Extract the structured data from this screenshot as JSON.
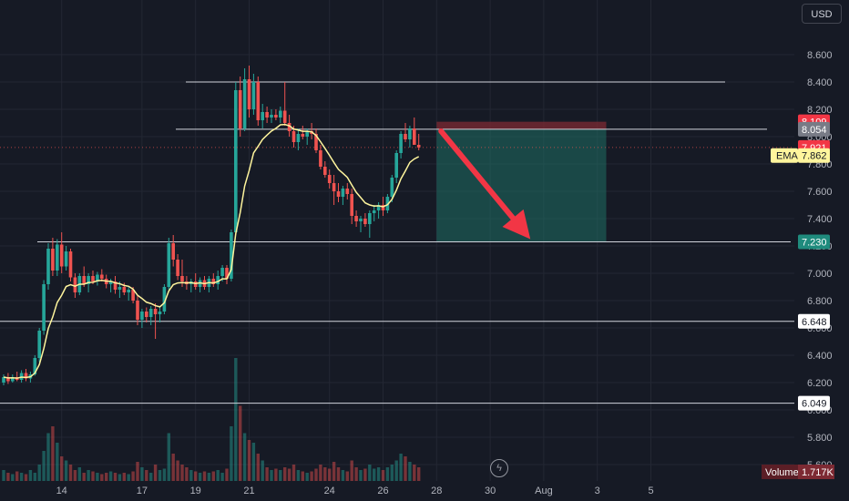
{
  "currency_label": "USD",
  "icons": {
    "lightning": "lightning-icon",
    "lightning_glyph": "ϟ"
  },
  "colors": {
    "background": "#161a25",
    "grid": "#232733",
    "up": "#26a69a",
    "down": "#ef5350",
    "ema": "#fff59d",
    "hline": "#d1d4dc",
    "arrow": "#f23645",
    "target_zone": "#1f6f65",
    "stop_zone": "#7d2a33"
  },
  "chart_data": {
    "type": "candlestick",
    "ylim": [
      5.6,
      8.8
    ],
    "y_ticks": [
      "5.600",
      "5.800",
      "6.000",
      "6.200",
      "6.400",
      "6.600",
      "6.800",
      "7.000",
      "7.200",
      "7.400",
      "7.600",
      "7.800",
      "8.000",
      "8.200",
      "8.400",
      "8.600"
    ],
    "x_ticks": [
      {
        "label": "14",
        "index": 13
      },
      {
        "label": "17",
        "index": 31
      },
      {
        "label": "19",
        "index": 43
      },
      {
        "label": "21",
        "index": 55
      },
      {
        "label": "24",
        "index": 73
      },
      {
        "label": "26",
        "index": 85
      },
      {
        "label": "28",
        "index": 97
      },
      {
        "label": "30",
        "index": 109
      },
      {
        "label": "Aug",
        "index": 121
      },
      {
        "label": "3",
        "index": 133
      },
      {
        "label": "5",
        "index": 145
      }
    ],
    "horizontal_levels": [
      8.4,
      8.054,
      7.23,
      6.648,
      6.049
    ],
    "price_labels": [
      {
        "name": "stop",
        "value": 8.109,
        "text": "8.109",
        "color": "#f23645"
      },
      {
        "name": "entry",
        "value": 8.054,
        "text": "8.054",
        "color": "#787b86"
      },
      {
        "name": "last",
        "value": 7.921,
        "text": "7.921",
        "color": "#f23645"
      },
      {
        "name": "ema",
        "value": 7.862,
        "text": "7.862",
        "color": "#fff59d",
        "prefix": "EMA"
      },
      {
        "name": "target",
        "value": 7.23,
        "text": "7.230",
        "color": "#1f8b7d"
      },
      {
        "name": "level-6648",
        "value": 6.648,
        "text": "6.648",
        "color": "#ffffff"
      },
      {
        "name": "level-6049",
        "value": 6.049,
        "text": "6.049",
        "color": "#ffffff"
      }
    ],
    "volume": {
      "label": "Volume",
      "value_text": "1.717K"
    },
    "position": {
      "type": "short",
      "entry": 8.054,
      "stop": 8.109,
      "target": 7.23,
      "start_index": 97,
      "end_index": 135
    },
    "arrow": {
      "from_index": 98,
      "from_price": 8.04,
      "to_index": 118,
      "to_price": 7.25
    },
    "candles": [
      [
        6.2,
        6.26,
        6.18,
        6.24
      ],
      [
        6.24,
        6.27,
        6.19,
        6.21
      ],
      [
        6.21,
        6.26,
        6.2,
        6.24
      ],
      [
        6.24,
        6.28,
        6.21,
        6.22
      ],
      [
        6.22,
        6.29,
        6.2,
        6.27
      ],
      [
        6.27,
        6.3,
        6.21,
        6.23
      ],
      [
        6.23,
        6.28,
        6.2,
        6.26
      ],
      [
        6.26,
        6.4,
        6.25,
        6.38
      ],
      [
        6.38,
        6.6,
        6.35,
        6.58
      ],
      [
        6.58,
        6.95,
        6.55,
        6.92
      ],
      [
        6.92,
        7.22,
        6.88,
        7.18
      ],
      [
        7.18,
        7.26,
        6.98,
        7.02
      ],
      [
        7.02,
        7.25,
        6.98,
        7.21
      ],
      [
        7.21,
        7.3,
        7.0,
        7.05
      ],
      [
        7.05,
        7.2,
        7.02,
        7.16
      ],
      [
        7.16,
        7.18,
        6.94,
        6.97
      ],
      [
        6.97,
        7.0,
        6.82,
        6.86
      ],
      [
        6.86,
        7.0,
        6.84,
        6.98
      ],
      [
        6.98,
        7.05,
        6.9,
        6.92
      ],
      [
        6.92,
        7.0,
        6.86,
        6.98
      ],
      [
        6.98,
        7.02,
        6.92,
        6.94
      ],
      [
        6.94,
        7.01,
        6.91,
        6.99
      ],
      [
        6.99,
        7.03,
        6.94,
        6.96
      ],
      [
        6.96,
        6.99,
        6.89,
        6.92
      ],
      [
        6.92,
        6.96,
        6.86,
        6.94
      ],
      [
        6.94,
        6.98,
        6.85,
        6.88
      ],
      [
        6.88,
        6.94,
        6.82,
        6.9
      ],
      [
        6.9,
        6.93,
        6.84,
        6.86
      ],
      [
        6.86,
        6.9,
        6.8,
        6.88
      ],
      [
        6.88,
        6.9,
        6.78,
        6.8
      ],
      [
        6.8,
        6.84,
        6.62,
        6.66
      ],
      [
        6.66,
        6.74,
        6.6,
        6.72
      ],
      [
        6.72,
        6.75,
        6.64,
        6.68
      ],
      [
        6.68,
        6.76,
        6.62,
        6.74
      ],
      [
        6.74,
        6.78,
        6.52,
        6.7
      ],
      [
        6.7,
        6.76,
        6.64,
        6.72
      ],
      [
        6.72,
        6.92,
        6.7,
        6.9
      ],
      [
        6.9,
        7.26,
        6.88,
        7.22
      ],
      [
        7.22,
        7.28,
        7.05,
        7.1
      ],
      [
        7.1,
        7.14,
        6.95,
        6.98
      ],
      [
        6.98,
        7.1,
        6.9,
        6.94
      ],
      [
        6.94,
        6.98,
        6.88,
        6.92
      ],
      [
        6.92,
        6.96,
        6.86,
        6.94
      ],
      [
        6.94,
        7.0,
        6.88,
        6.9
      ],
      [
        6.9,
        6.97,
        6.86,
        6.95
      ],
      [
        6.95,
        6.98,
        6.88,
        6.9
      ],
      [
        6.9,
        6.98,
        6.86,
        6.96
      ],
      [
        6.96,
        7.0,
        6.9,
        6.92
      ],
      [
        6.92,
        7.02,
        6.88,
        6.98
      ],
      [
        6.98,
        7.06,
        6.94,
        7.04
      ],
      [
        7.04,
        7.06,
        6.92,
        6.96
      ],
      [
        6.96,
        7.32,
        6.94,
        7.3
      ],
      [
        7.3,
        8.4,
        7.28,
        8.34
      ],
      [
        8.34,
        8.44,
        8.0,
        8.06
      ],
      [
        8.06,
        8.5,
        8.04,
        8.42
      ],
      [
        8.42,
        8.52,
        8.14,
        8.2
      ],
      [
        8.2,
        8.46,
        8.16,
        8.4
      ],
      [
        8.4,
        8.44,
        8.08,
        8.12
      ],
      [
        8.12,
        8.24,
        8.06,
        8.18
      ],
      [
        8.18,
        8.22,
        8.1,
        8.14
      ],
      [
        8.14,
        8.2,
        8.1,
        8.16
      ],
      [
        8.16,
        8.2,
        8.12,
        8.14
      ],
      [
        8.14,
        8.22,
        8.1,
        8.19
      ],
      [
        8.19,
        8.4,
        8.08,
        8.1
      ],
      [
        8.1,
        8.16,
        8.0,
        8.04
      ],
      [
        8.04,
        8.08,
        7.92,
        7.96
      ],
      [
        7.96,
        8.06,
        7.9,
        8.02
      ],
      [
        8.02,
        8.08,
        7.98,
        8.0
      ],
      [
        8.0,
        8.06,
        7.94,
        8.04
      ],
      [
        8.04,
        8.1,
        7.98,
        8.02
      ],
      [
        8.02,
        8.06,
        7.88,
        7.9
      ],
      [
        7.9,
        7.94,
        7.76,
        7.78
      ],
      [
        7.78,
        7.82,
        7.7,
        7.72
      ],
      [
        7.72,
        7.76,
        7.62,
        7.66
      ],
      [
        7.66,
        7.72,
        7.5,
        7.6
      ],
      [
        7.6,
        7.66,
        7.52,
        7.56
      ],
      [
        7.56,
        7.64,
        7.5,
        7.62
      ],
      [
        7.62,
        7.66,
        7.54,
        7.58
      ],
      [
        7.58,
        7.62,
        7.36,
        7.42
      ],
      [
        7.42,
        7.46,
        7.34,
        7.38
      ],
      [
        7.38,
        7.42,
        7.3,
        7.4
      ],
      [
        7.4,
        7.44,
        7.34,
        7.36
      ],
      [
        7.36,
        7.46,
        7.26,
        7.44
      ],
      [
        7.44,
        7.5,
        7.38,
        7.46
      ],
      [
        7.46,
        7.52,
        7.4,
        7.5
      ],
      [
        7.5,
        7.56,
        7.42,
        7.46
      ],
      [
        7.46,
        7.58,
        7.44,
        7.56
      ],
      [
        7.56,
        7.72,
        7.52,
        7.7
      ],
      [
        7.7,
        7.9,
        7.66,
        7.88
      ],
      [
        7.88,
        8.04,
        7.84,
        8.02
      ],
      [
        8.02,
        8.1,
        7.96,
        7.98
      ],
      [
        7.98,
        8.08,
        7.92,
        8.06
      ],
      [
        8.06,
        8.14,
        7.96,
        7.94
      ],
      [
        7.94,
        8.02,
        7.9,
        7.921
      ]
    ],
    "volumes": [
      8,
      6,
      5,
      7,
      6,
      5,
      8,
      6,
      12,
      22,
      35,
      40,
      28,
      18,
      15,
      12,
      8,
      10,
      6,
      8,
      7,
      6,
      5,
      6,
      7,
      6,
      5,
      6,
      5,
      7,
      14,
      10,
      8,
      6,
      12,
      8,
      9,
      35,
      20,
      15,
      12,
      10,
      8,
      7,
      6,
      7,
      6,
      7,
      8,
      6,
      9,
      40,
      90,
      55,
      35,
      30,
      28,
      20,
      15,
      10,
      8,
      9,
      8,
      10,
      9,
      12,
      8,
      7,
      6,
      7,
      9,
      12,
      10,
      9,
      14,
      10,
      8,
      7,
      15,
      10,
      8,
      9,
      12,
      9,
      10,
      8,
      10,
      12,
      15,
      20,
      18,
      14,
      12,
      10,
      8
    ]
  }
}
